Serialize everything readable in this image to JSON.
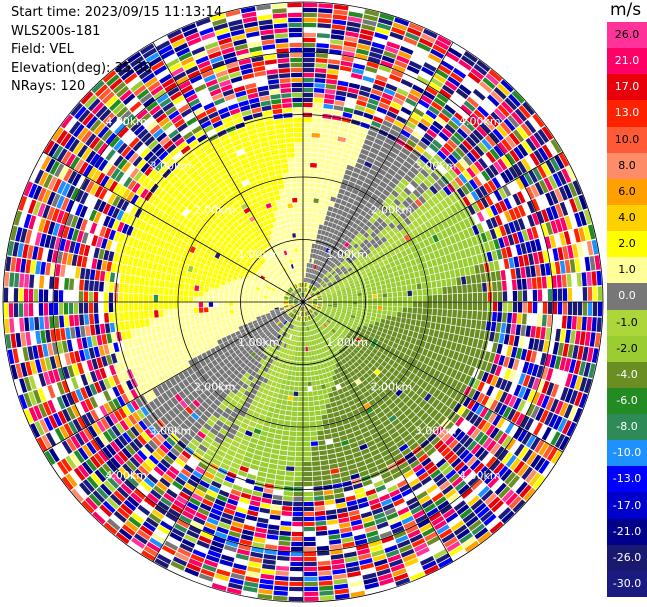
{
  "header": {
    "start_time": "Start time: 2023/09/15 11:13:14",
    "instrument": "WLS200s-181",
    "field": "Field: VEL",
    "elevation": "Elevation(deg): 35.30",
    "nrays": "NRays: 120"
  },
  "colorbar": {
    "unit": "m/s",
    "ticks": [
      "26.0",
      "21.0",
      "17.0",
      "13.0",
      "10.0",
      "8.0",
      "6.0",
      "4.0",
      "2.0",
      "1.0",
      "0.0",
      "-1.0",
      "-2.0",
      "-4.0",
      "-6.0",
      "-8.0",
      "-10.0",
      "-13.0",
      "-17.0",
      "-21.0",
      "-26.0",
      "-30.0"
    ],
    "colors": [
      "#ff3399",
      "#ff0066",
      "#e8000b",
      "#ff2200",
      "#ff5a36",
      "#ff8c69",
      "#ff9f00",
      "#ffd000",
      "#ffff00",
      "#ffff99",
      "#777777",
      "#acd63a",
      "#9acd32",
      "#6b8e23",
      "#228b22",
      "#2e8b57",
      "#1e90ff",
      "#0000ff",
      "#0000cd",
      "#00008b",
      "#191970",
      "#1a1a80"
    ]
  },
  "chart_data": {
    "type": "heatmap",
    "description_of_axes": "PPI polar display, range rings and radial grid",
    "range_ring_labels": [
      "1.00km",
      "2.00km",
      "3.00km",
      "4.00km"
    ],
    "range_rings_km": [
      1.0,
      2.0,
      3.0,
      4.0
    ],
    "max_range_km": 4.8,
    "nrays": 120,
    "colormap_ticks_ms": [
      26.0,
      21.0,
      17.0,
      13.0,
      10.0,
      8.0,
      6.0,
      4.0,
      2.0,
      1.0,
      0.0,
      -1.0,
      -2.0,
      -4.0,
      -6.0,
      -8.0,
      -10.0,
      -13.0,
      -17.0,
      -21.0,
      -26.0,
      -30.0
    ],
    "colorbar_label": "m/s"
  }
}
